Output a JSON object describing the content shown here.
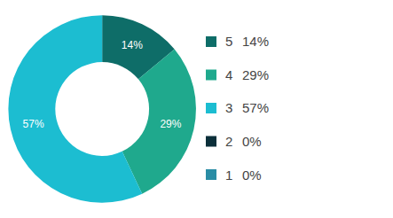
{
  "chart_data": {
    "type": "pie",
    "categories": [
      "5",
      "4",
      "3",
      "2",
      "1"
    ],
    "values": [
      14,
      29,
      57,
      0,
      0
    ],
    "value_labels": [
      "14%",
      "29%",
      "57%",
      "0%",
      "0%"
    ],
    "colors": [
      "#0e6d68",
      "#1fa98d",
      "#1cbdd1",
      "#0b2f3a",
      "#2a8da5"
    ],
    "data_labels": true,
    "legend": "right"
  }
}
